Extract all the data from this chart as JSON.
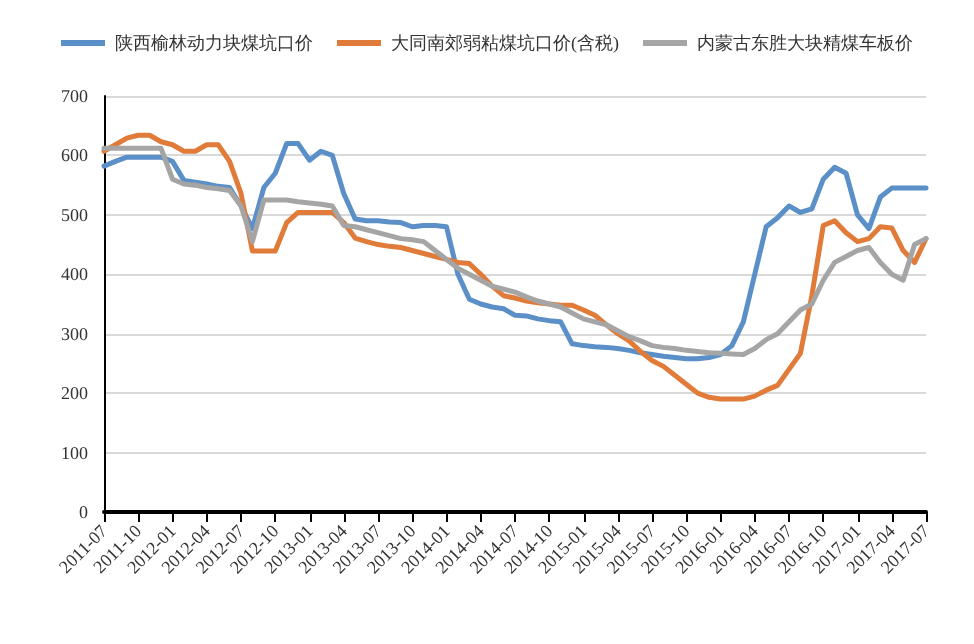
{
  "chart_data": {
    "type": "line",
    "categories": [
      "2011-07",
      null,
      null,
      "2011-10",
      null,
      null,
      "2012-01",
      null,
      null,
      "2012-04",
      null,
      null,
      "2012-07",
      null,
      null,
      "2012-10",
      null,
      null,
      "2013-01",
      null,
      null,
      "2013-04",
      null,
      null,
      "2013-07",
      null,
      null,
      "2013-10",
      null,
      null,
      "2014-01",
      null,
      null,
      "2014-04",
      null,
      null,
      "2014-07",
      null,
      null,
      "2014-10",
      null,
      null,
      "2015-01",
      null,
      null,
      "2015-04",
      null,
      null,
      "2015-07",
      null,
      null,
      "2015-10",
      null,
      null,
      "2016-01",
      null,
      null,
      "2016-04",
      null,
      null,
      "2016-07",
      null,
      null,
      "2016-10",
      null,
      null,
      "2017-01",
      null,
      null,
      "2017-04",
      null,
      null,
      "2017-07"
    ],
    "series": [
      {
        "name": "陕西榆林动力块煤坑口价",
        "color": "#5b8fc7",
        "values": [
          582,
          590,
          597,
          597,
          597,
          597,
          590,
          558,
          555,
          552,
          548,
          546,
          515,
          477,
          546,
          570,
          620,
          620,
          592,
          607,
          600,
          536,
          493,
          490,
          490,
          488,
          487,
          480,
          482,
          482,
          480,
          400,
          358,
          350,
          345,
          342,
          331,
          330,
          325,
          322,
          320,
          283,
          280,
          278,
          277,
          275,
          272,
          268,
          265,
          262,
          260,
          258,
          258,
          260,
          265,
          280,
          320,
          400,
          480,
          495,
          515,
          504,
          510,
          560,
          580,
          570,
          500,
          477,
          530,
          545,
          545,
          545,
          545
        ]
      },
      {
        "name": "大同南郊弱粘煤坑口价(含税)",
        "color": "#e07b39",
        "values": [
          607,
          618,
          629,
          634,
          634,
          623,
          618,
          607,
          607,
          618,
          618,
          590,
          536,
          439,
          439,
          439,
          487,
          504,
          504,
          504,
          504,
          487,
          461,
          455,
          450,
          447,
          445,
          440,
          435,
          430,
          425,
          420,
          418,
          400,
          380,
          364,
          360,
          355,
          352,
          350,
          348,
          348,
          340,
          331,
          315,
          300,
          288,
          270,
          255,
          245,
          230,
          215,
          200,
          193,
          190,
          190,
          190,
          195,
          205,
          213,
          240,
          267,
          364,
          482,
          490,
          470,
          455,
          460,
          480,
          478,
          440,
          420,
          460
        ]
      },
      {
        "name": "内蒙古东胜大块精煤车板价",
        "color": "#a5a5a5",
        "values": [
          612,
          612,
          612,
          612,
          612,
          612,
          560,
          552,
          550,
          546,
          544,
          541,
          515,
          455,
          525,
          525,
          525,
          522,
          520,
          518,
          515,
          482,
          480,
          475,
          470,
          465,
          460,
          458,
          455,
          440,
          425,
          410,
          400,
          390,
          380,
          375,
          370,
          362,
          355,
          350,
          345,
          335,
          325,
          320,
          315,
          305,
          295,
          288,
          280,
          277,
          275,
          272,
          270,
          268,
          267,
          266,
          265,
          275,
          290,
          300,
          320,
          340,
          350,
          390,
          420,
          430,
          440,
          445,
          420,
          400,
          390,
          450,
          460
        ]
      }
    ],
    "ylim": [
      0,
      700
    ],
    "yticks": [
      0,
      100,
      200,
      300,
      400,
      500,
      600,
      700
    ],
    "grid": "y",
    "legend": "top",
    "marker": "none",
    "line_style": "solid"
  }
}
